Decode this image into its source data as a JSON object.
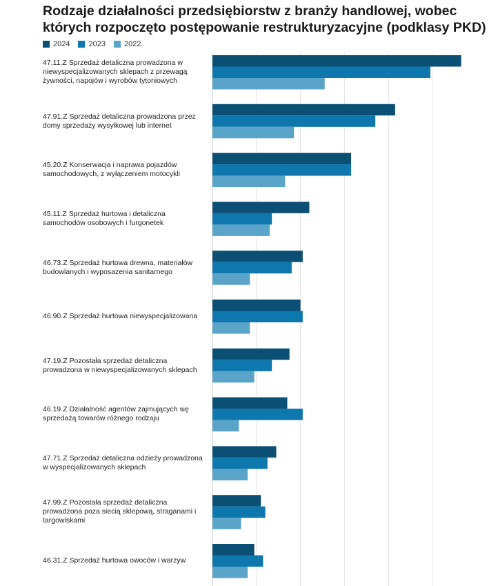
{
  "chart_data": {
    "type": "bar",
    "orientation": "horizontal",
    "title": "Rodzaje działalności przedsiębiorstw z branży handlowej, wobec których rozpoczęto postępowanie restrukturyzacyjne (podklasy PKD)",
    "categories": [
      "47.11.Z Sprzedaż detaliczna prowadzona w niewyspecjalizowanych sklepach z przewagą żywności, napojów i wyrobów tytoniowych",
      "47.91.Z Sprzedaż detaliczna prowadzona przez domy sprzedaży wysyłkowej lub internet",
      "45.20.Z Konserwacja i naprawa pojazdów samochodowych, z wyłączeniem motocykli",
      "45.11.Z Sprzedaż hurtowa i detaliczna samochodów osobowych i furgonetek",
      "46.73.Z Sprzedaż hurtowa drewna, materiałów budowlanych i wyposażenia sanitarnego",
      "46.90.Z Sprzedaż hurtowa niewyspecjalizowana",
      "47.19.Z Pozostała sprzedaż detaliczna prowadzona w niewyspecjalizowanych sklepach",
      "46.19.Z Działalność agentów zajmujących się sprzedażą towarów różnego rodzaju",
      "47.71.Z Sprzedaż detaliczna odzieży prowadzona w wyspecjalizowanych sklepach",
      "47.99.Z Pozostała sprzedaż detaliczna prowadzona poza siecią sklepową, straganami i targowiskami",
      "46.31.Z Sprzedaż hurtowa owoców i warzyw"
    ],
    "series": [
      {
        "name": "2024",
        "color": "#0b4f74",
        "values": [
          113,
          83,
          63,
          44,
          41,
          40,
          35,
          34,
          29,
          22,
          19
        ]
      },
      {
        "name": "2023",
        "color": "#0d77ae",
        "values": [
          99,
          74,
          63,
          27,
          36,
          41,
          27,
          41,
          25,
          24,
          23
        ]
      },
      {
        "name": "2022",
        "color": "#5aa4c9",
        "values": [
          51,
          37,
          33,
          26,
          17,
          17,
          19,
          12,
          16,
          13,
          16
        ]
      }
    ],
    "xlim": [
      0,
      115
    ],
    "grid": true,
    "legend_position": "top-left"
  }
}
